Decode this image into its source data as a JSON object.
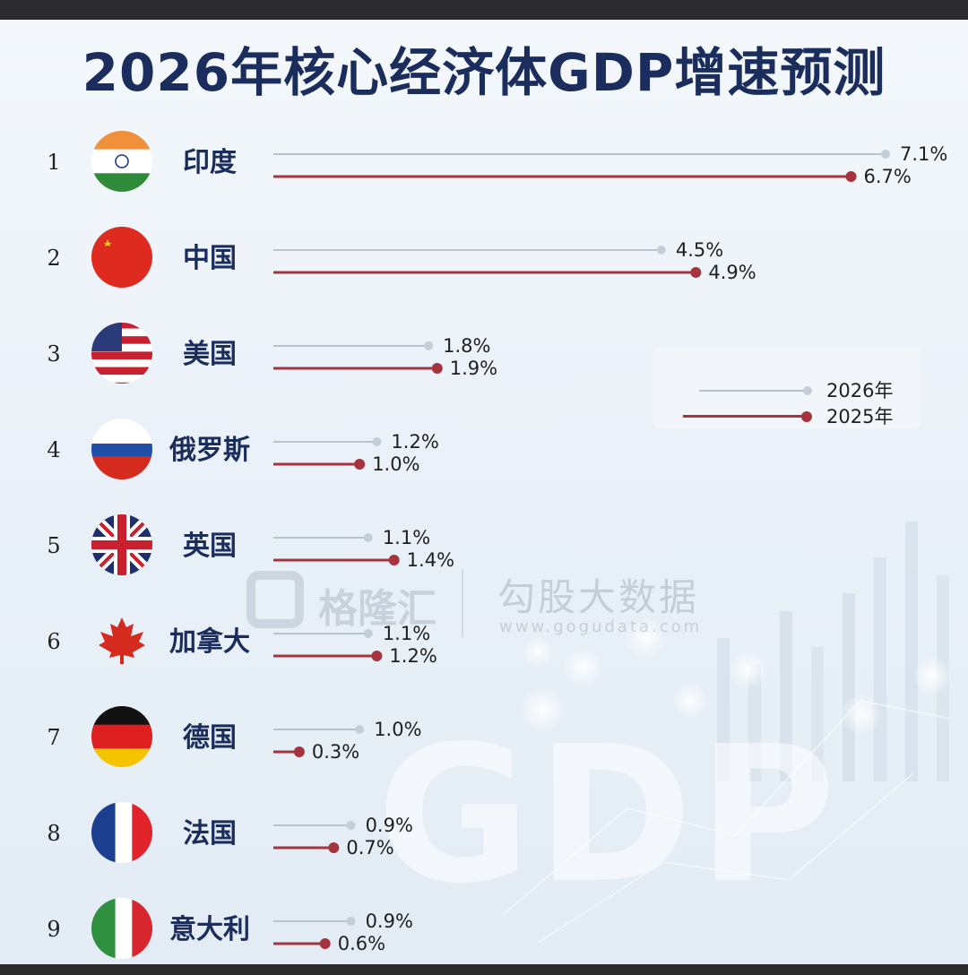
{
  "title": "2026年核心经济体GDP增速预测",
  "colors": {
    "series_2026": "#b9c3cd",
    "series_2025": "#a5343f",
    "dot_2026": "#c4ced8",
    "title": "#1a2d5c"
  },
  "legend": {
    "items": [
      {
        "label": "2026年",
        "series": "2026"
      },
      {
        "label": "2025年",
        "series": "2025"
      }
    ],
    "placement": "right-middle"
  },
  "watermark": {
    "brand_left": "格隆汇",
    "brand": "勾股大数据",
    "url": "www.gogudata.com",
    "background_text": "GDP"
  },
  "chart_data": {
    "type": "bar",
    "orientation": "horizontal",
    "title": "2026年核心经济体GDP增速预测",
    "xlim": [
      0,
      7.1
    ],
    "grid": false,
    "series": [
      {
        "name": "2026年",
        "values": [
          7.1,
          4.5,
          1.8,
          1.2,
          1.1,
          1.1,
          1.0,
          0.9,
          0.9
        ]
      },
      {
        "name": "2025年",
        "values": [
          6.7,
          4.9,
          1.9,
          1.0,
          1.4,
          1.2,
          0.3,
          0.7,
          0.6
        ]
      }
    ],
    "rows": [
      {
        "rank": "1",
        "name": "印度",
        "flag": "india-flag-icon",
        "v2026": 7.1,
        "v2025": 6.7,
        "label2026": "7.1%",
        "label2025": "6.7%"
      },
      {
        "rank": "2",
        "name": "中国",
        "flag": "china-flag-icon",
        "v2026": 4.5,
        "v2025": 4.9,
        "label2026": "4.5%",
        "label2025": "4.9%"
      },
      {
        "rank": "3",
        "name": "美国",
        "flag": "usa-flag-icon",
        "v2026": 1.8,
        "v2025": 1.9,
        "label2026": "1.8%",
        "label2025": "1.9%"
      },
      {
        "rank": "4",
        "name": "俄罗斯",
        "flag": "russia-flag-icon",
        "v2026": 1.2,
        "v2025": 1.0,
        "label2026": "1.2%",
        "label2025": "1.0%"
      },
      {
        "rank": "5",
        "name": "英国",
        "flag": "uk-flag-icon",
        "v2026": 1.1,
        "v2025": 1.4,
        "label2026": "1.1%",
        "label2025": "1.4%"
      },
      {
        "rank": "6",
        "name": "加拿大",
        "flag": "canada-flag-icon",
        "v2026": 1.1,
        "v2025": 1.2,
        "label2026": "1.1%",
        "label2025": "1.2%"
      },
      {
        "rank": "7",
        "name": "德国",
        "flag": "germany-flag-icon",
        "v2026": 1.0,
        "v2025": 0.3,
        "label2026": "1.0%",
        "label2025": "0.3%"
      },
      {
        "rank": "8",
        "name": "法国",
        "flag": "france-flag-icon",
        "v2026": 0.9,
        "v2025": 0.7,
        "label2026": "0.9%",
        "label2025": "0.7%"
      },
      {
        "rank": "9",
        "name": "意大利",
        "flag": "italy-flag-icon",
        "v2026": 0.9,
        "v2025": 0.6,
        "label2026": "0.9%",
        "label2025": "0.6%"
      }
    ]
  }
}
